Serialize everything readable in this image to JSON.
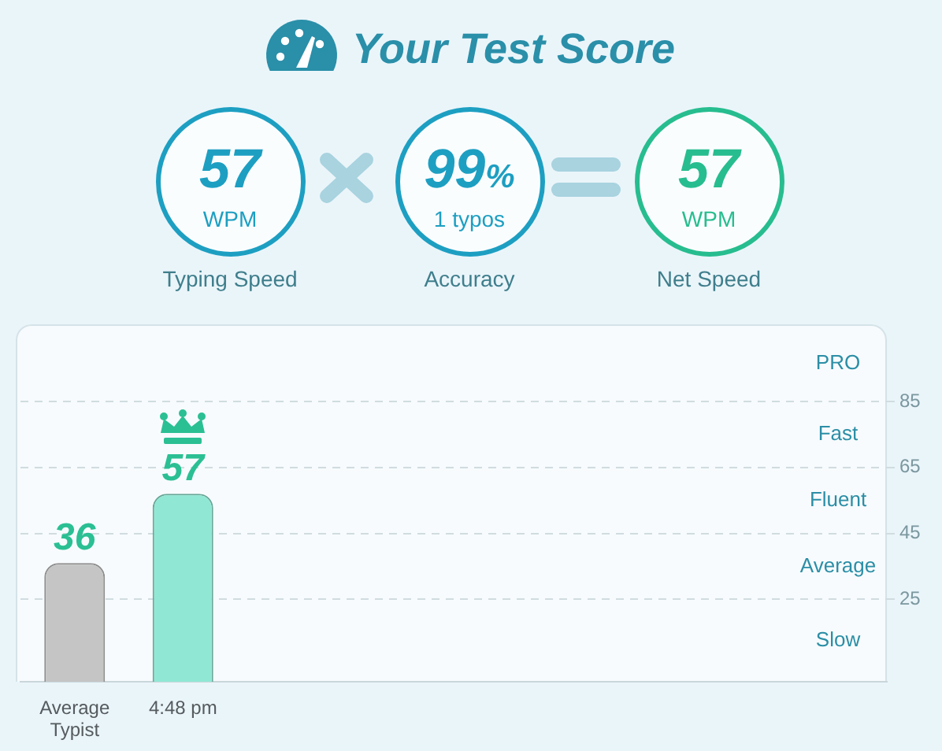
{
  "chart_data": [
    {
      "type": "other",
      "title": "Your Test Score",
      "annotations": [
        "57",
        "WPM",
        "Typing Speed",
        "99%",
        "1 typos",
        "Accuracy",
        "57",
        "WPM",
        "Net Speed"
      ]
    },
    {
      "type": "bar",
      "categories": [
        "Average Typist",
        "4:48 pm",
        null,
        null,
        null,
        null,
        null,
        null
      ],
      "values": [
        36,
        57,
        null,
        null,
        null,
        null,
        null,
        null
      ],
      "colors": [
        "#c5c5c5",
        "#90e8d4",
        "#90e8d4",
        "#90e8d4",
        "#90e8d4",
        "#90e8d4",
        "#90e8d4",
        "#90e8d4"
      ],
      "ylim": [
        0,
        108
      ],
      "yticks": [
        25,
        45,
        65,
        85
      ],
      "grid": "y",
      "annotations": [
        "PRO",
        "Fast",
        "Fluent",
        "Average",
        "Slow"
      ],
      "data_labels": true
    }
  ]
}
